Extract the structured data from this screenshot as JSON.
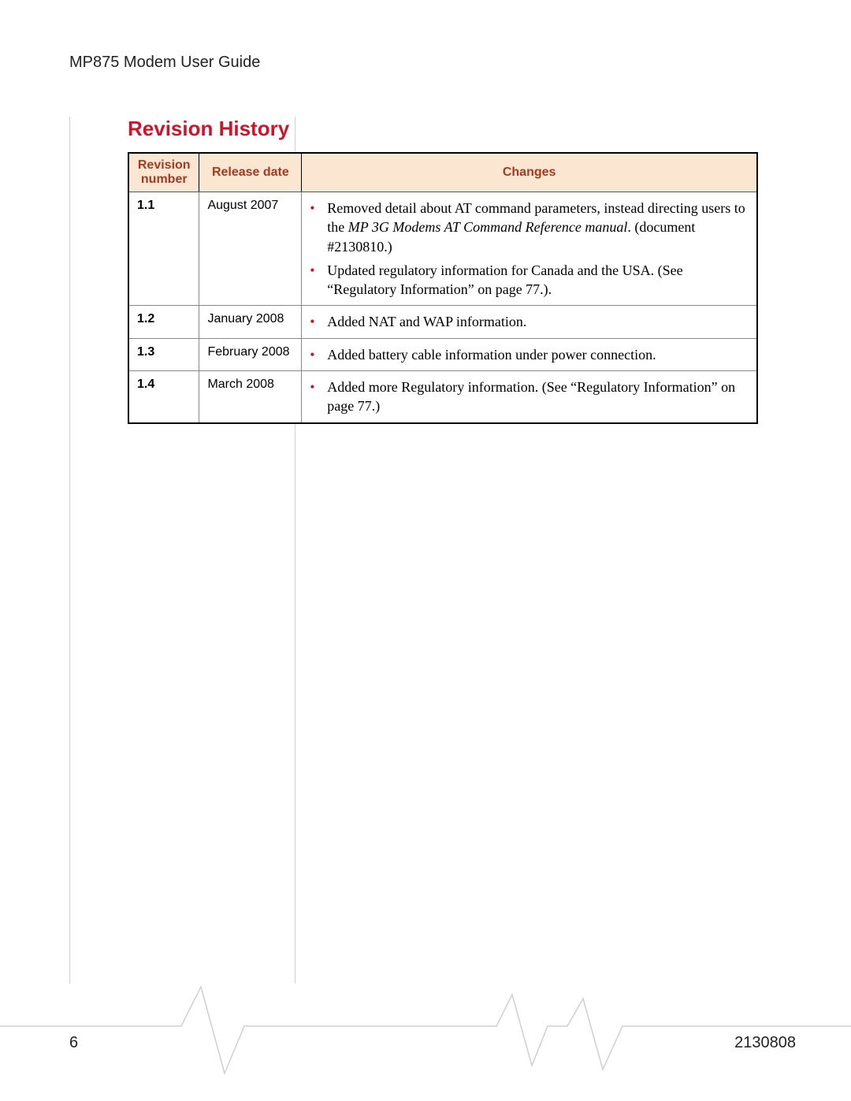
{
  "header": {
    "doc_title": "MP875 Modem User Guide"
  },
  "section": {
    "title": "Revision History"
  },
  "colors": {
    "accent": "#d0122b",
    "header_bg": "#fbe6d2",
    "header_text": "#a33b22",
    "rule": "#cfcfcf",
    "border": "#000000"
  },
  "table": {
    "columns": [
      "Revision number",
      "Release date",
      "Changes"
    ],
    "rows": [
      {
        "rev": "1.1",
        "date": "August 2007",
        "changes": [
          {
            "pre": "Removed detail about AT command parameters, instead directing users to the ",
            "italic": "MP 3G Modems AT Command Reference manual",
            "post": ". (document #2130810.)"
          },
          {
            "pre": "Updated regulatory information for Canada and the USA. (See “Regulatory Information” on page 77.)."
          }
        ]
      },
      {
        "rev": "1.2",
        "date": "January 2008",
        "changes": [
          {
            "pre": "Added NAT and WAP information."
          }
        ]
      },
      {
        "rev": "1.3",
        "date": "February 2008",
        "changes": [
          {
            "pre": "Added battery cable information under power connection."
          }
        ]
      },
      {
        "rev": "1.4",
        "date": "March 2008",
        "changes": [
          {
            "pre": "Added more Regulatory information.  (See “Regulatory Information” on page 77.)"
          }
        ]
      }
    ]
  },
  "footer": {
    "page_number": "6",
    "doc_number": "2130808"
  }
}
